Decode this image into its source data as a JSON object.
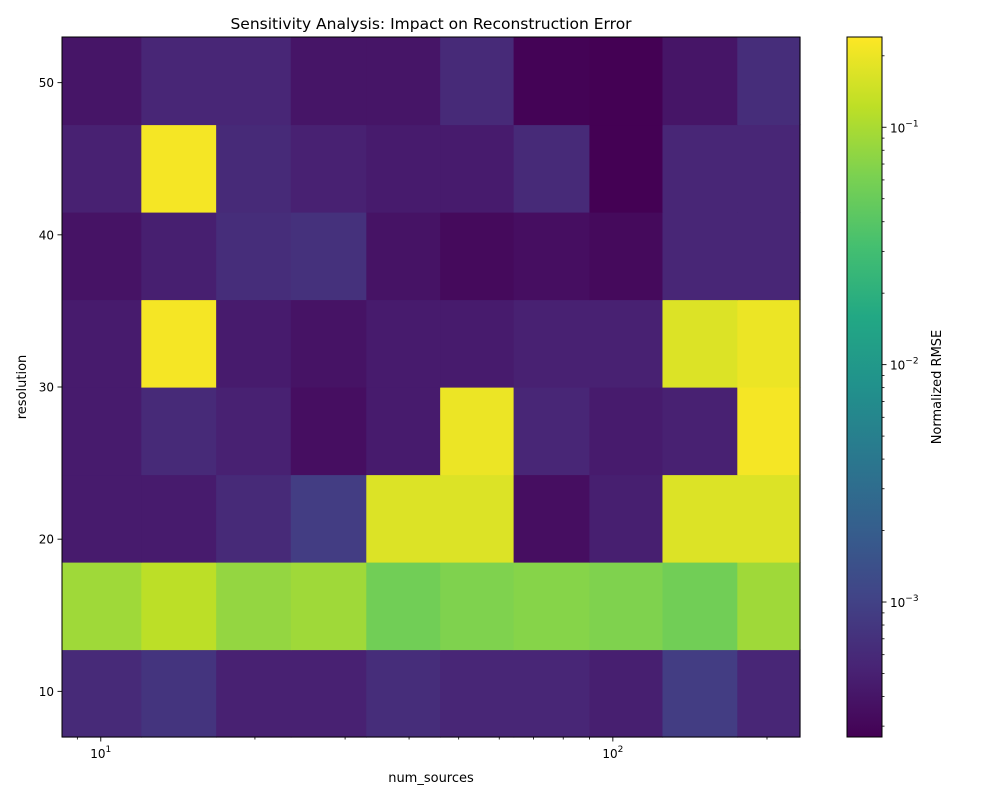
{
  "chart_data": {
    "type": "heatmap",
    "title": "Sensitivity Analysis: Impact on Reconstruction Error",
    "xlabel": "num_sources",
    "ylabel": "resolution",
    "x_scale": "log",
    "x_ticks": [
      {
        "value": 10,
        "base": "10",
        "exp": "1"
      },
      {
        "value": 100,
        "base": "10",
        "exp": "2"
      }
    ],
    "y_ticks": [
      10,
      20,
      30,
      40,
      50
    ],
    "x_edges": [
      8.4,
      12,
      16.8,
      23.5,
      33,
      46,
      64,
      90,
      125,
      175,
      232
    ],
    "y_edges": [
      7,
      12.75,
      18.5,
      24.25,
      30,
      35.75,
      41.5,
      47.25,
      53
    ],
    "colorbar": {
      "label": "Normalized RMSE",
      "scale": "log",
      "range": [
        0.00027,
        0.24
      ],
      "ticks": [
        {
          "value": 0.001,
          "base": "10",
          "exp": "−3"
        },
        {
          "value": 0.01,
          "base": "10",
          "exp": "−2"
        },
        {
          "value": 0.1,
          "base": "10",
          "exp": "−1"
        }
      ],
      "colormap": "viridis"
    },
    "values": [
      [
        0.0006,
        0.00075,
        0.0005,
        0.0005,
        0.00065,
        0.00055,
        0.00055,
        0.00048,
        0.0009,
        0.00055
      ],
      [
        0.09,
        0.12,
        0.08,
        0.09,
        0.055,
        0.065,
        0.07,
        0.065,
        0.055,
        0.09
      ],
      [
        0.00045,
        0.00045,
        0.0006,
        0.0009,
        0.17,
        0.17,
        0.00035,
        0.00048,
        0.17,
        0.17
      ],
      [
        0.00045,
        0.0006,
        0.0005,
        0.00035,
        0.00045,
        0.2,
        0.00055,
        0.00045,
        0.0005,
        0.22
      ],
      [
        0.00045,
        0.22,
        0.00045,
        0.00038,
        0.00045,
        0.00045,
        0.0005,
        0.0005,
        0.17,
        0.2
      ],
      [
        0.00038,
        0.00048,
        0.00065,
        0.0007,
        0.00038,
        0.00032,
        0.00035,
        0.00032,
        0.00055,
        0.00055
      ],
      [
        0.0005,
        0.22,
        0.0006,
        0.0005,
        0.00045,
        0.00045,
        0.0006,
        0.00027,
        0.00055,
        0.00055
      ],
      [
        0.0004,
        0.00055,
        0.00055,
        0.0004,
        0.0004,
        0.0006,
        0.00028,
        0.00027,
        0.0004,
        0.00065
      ]
    ]
  }
}
